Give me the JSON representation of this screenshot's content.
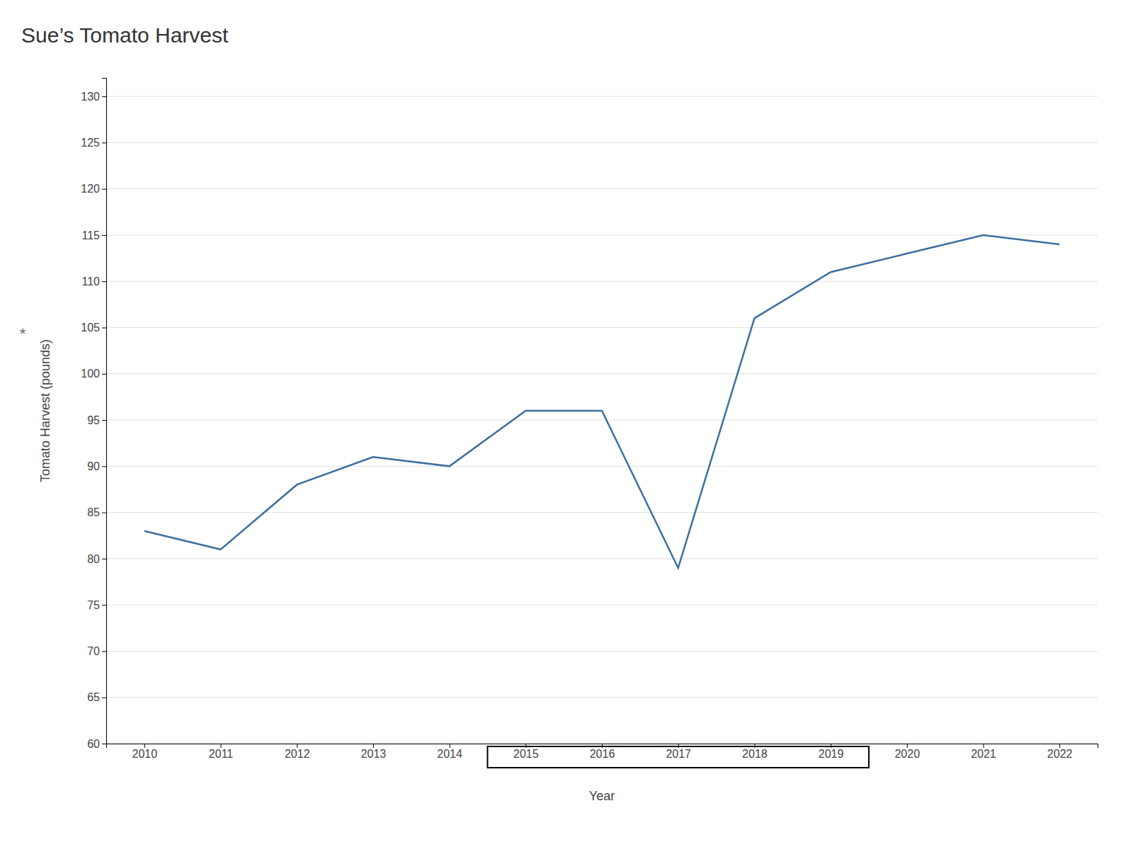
{
  "chart_data": {
    "type": "line",
    "title": "Sue’s Tomato Harvest",
    "x_label": "Year",
    "y_label": "Tomato Harvest (pounds)",
    "x": [
      2010,
      2011,
      2012,
      2013,
      2014,
      2015,
      2016,
      2017,
      2018,
      2019,
      2020,
      2021,
      2022
    ],
    "values": [
      83,
      81,
      88,
      91,
      90,
      96,
      96,
      79,
      106,
      111,
      113,
      115,
      114
    ],
    "color": "#3d6fa0",
    "xlim": [
      2009.5,
      2022.5
    ],
    "xticks": [
      2010,
      2011,
      2012,
      2013,
      2014,
      2015,
      2016,
      2017,
      2018,
      2019,
      2020,
      2021,
      2022
    ],
    "ylim": [
      60,
      132
    ],
    "yticks": [
      60,
      65,
      70,
      75,
      80,
      85,
      90,
      95,
      100,
      105,
      110,
      115,
      120,
      125,
      130
    ],
    "grid": true,
    "annotations": [
      "★"
    ],
    "highlight": [
      2014.5,
      2019.5
    ]
  }
}
